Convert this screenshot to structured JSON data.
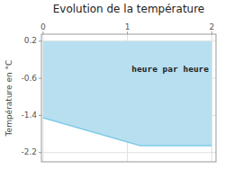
{
  "chart_data": {
    "type": "area",
    "title": "Evolution de la température",
    "y_label": "Température en °C",
    "x": [
      0,
      1.15,
      2.0
    ],
    "series": [
      {
        "type": "area",
        "color": "#b8dff0",
        "values": [
          0.2,
          0.2,
          0.2
        ],
        "base_values": [
          -1.45,
          -2.05,
          -2.05
        ]
      },
      {
        "type": "line",
        "color": "#80cce8",
        "values": [
          -1.45,
          -2.05,
          -2.05
        ]
      }
    ],
    "annotations": [
      {
        "text": "heure par heure",
        "x": 1.05,
        "y": -0.42
      }
    ],
    "xlim": [
      -0.02,
      2.05
    ],
    "ylim": [
      -2.4,
      0.35
    ],
    "xticks": [
      0,
      1,
      2
    ],
    "yticks": [
      0.2,
      -0.6,
      -1.4,
      -2.2
    ],
    "grid": true
  }
}
